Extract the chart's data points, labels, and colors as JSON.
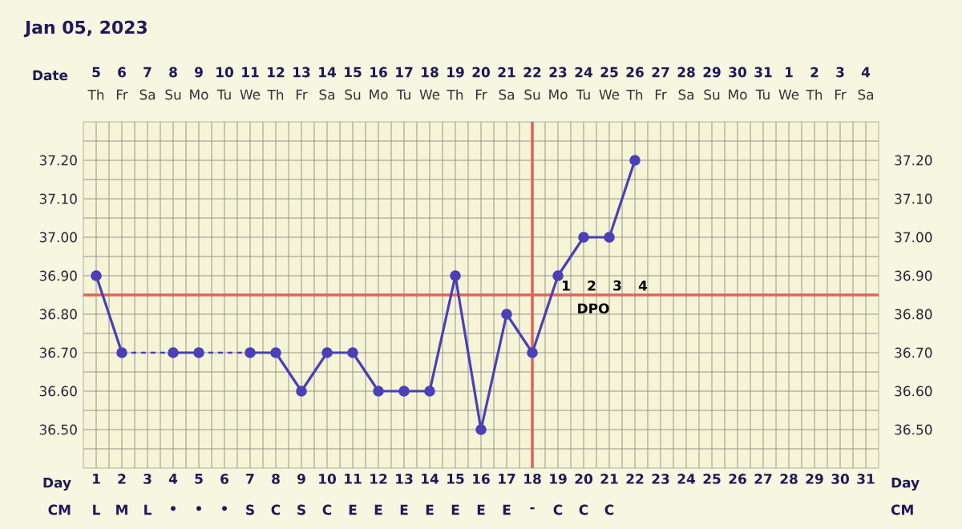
{
  "chart_data": {
    "type": "line",
    "title": "Jan 05, 2023",
    "xlabel": "Day",
    "categories": [
      "1",
      "2",
      "3",
      "4",
      "5",
      "6",
      "7",
      "8",
      "9",
      "10",
      "11",
      "12",
      "13",
      "14",
      "15",
      "16",
      "17",
      "18",
      "19",
      "20",
      "21",
      "22",
      "23",
      "24",
      "25",
      "26",
      "27",
      "28",
      "29",
      "30",
      "31"
    ],
    "series": [
      {
        "color": "#4a40b8",
        "values": [
          36.9,
          36.7,
          null,
          36.7,
          36.7,
          null,
          36.7,
          36.7,
          36.6,
          36.7,
          36.7,
          36.6,
          36.6,
          36.6,
          36.9,
          36.5,
          36.8,
          36.7,
          36.9,
          37.0,
          37.0,
          37.2,
          null,
          null,
          null,
          null,
          null,
          null,
          null,
          null,
          null
        ]
      }
    ],
    "marker": "circle",
    "line_style": "solid",
    "grid": true,
    "ylim": [
      36.4,
      37.3
    ],
    "yticks": [
      {
        "value": 36.45,
        "label": null
      },
      {
        "value": 36.5,
        "label": "36.50"
      },
      {
        "value": 36.55,
        "label": null
      },
      {
        "value": 36.6,
        "label": "36.60"
      },
      {
        "value": 36.65,
        "label": null
      },
      {
        "value": 36.7,
        "label": "36.70"
      },
      {
        "value": 36.75,
        "label": null
      },
      {
        "value": 36.8,
        "label": "36.80"
      },
      {
        "value": 36.9,
        "label": "36.90"
      },
      {
        "value": 36.95,
        "label": null
      },
      {
        "value": 37.0,
        "label": "37.00"
      },
      {
        "value": 37.05,
        "label": null
      },
      {
        "value": 37.1,
        "label": "37.10"
      },
      {
        "value": 37.15,
        "label": null
      },
      {
        "value": 37.2,
        "label": "37.20"
      },
      {
        "value": 37.25,
        "label": null
      }
    ],
    "y2lim": [
      36.4,
      37.3
    ],
    "y2ticks": [
      {
        "value": 36.5,
        "label": "36.50"
      },
      {
        "value": 36.6,
        "label": "36.60"
      },
      {
        "value": 36.7,
        "label": "36.70"
      },
      {
        "value": 36.8,
        "label": "36.80"
      },
      {
        "value": 36.9,
        "label": "36.90"
      },
      {
        "value": 37.0,
        "label": "37.00"
      },
      {
        "value": 37.1,
        "label": "37.10"
      },
      {
        "value": 37.2,
        "label": "37.20"
      }
    ],
    "ref_lines": [
      {
        "axis": "y",
        "value": 36.85,
        "color": "#d9675f"
      },
      {
        "axis": "x",
        "value": "18",
        "color": "#d9675f"
      }
    ],
    "annotations": [
      "CM",
      "Date",
      "5",
      "6",
      "7",
      "8",
      "9",
      "10",
      "11",
      "12",
      "13",
      "14",
      "15",
      "16",
      "17",
      "18",
      "19",
      "20",
      "21",
      "22",
      "23",
      "24",
      "25",
      "26",
      "27",
      "28",
      "29",
      "30",
      "31",
      "1",
      "2",
      "3",
      "4",
      "Th",
      "Fr",
      "Sa",
      "Su",
      "Mo",
      "Tu",
      "We",
      "Th",
      "Fr",
      "Sa",
      "Su",
      "Mo",
      "Tu",
      "We",
      "Th",
      "Fr",
      "Sa",
      "Su",
      "Mo",
      "Tu",
      "We",
      "Th",
      "Fr",
      "Sa",
      "Su",
      "Mo",
      "Tu",
      "We",
      "Th",
      "Fr",
      "Sa",
      "L",
      "M",
      "L",
      "•",
      "•",
      "•",
      "S",
      "C",
      "S",
      "C",
      "E",
      "E",
      "E",
      "E",
      "E",
      "E",
      "E",
      "-",
      "C",
      "C",
      "C",
      "1",
      "2",
      "3",
      "4",
      "DPO"
    ]
  }
}
